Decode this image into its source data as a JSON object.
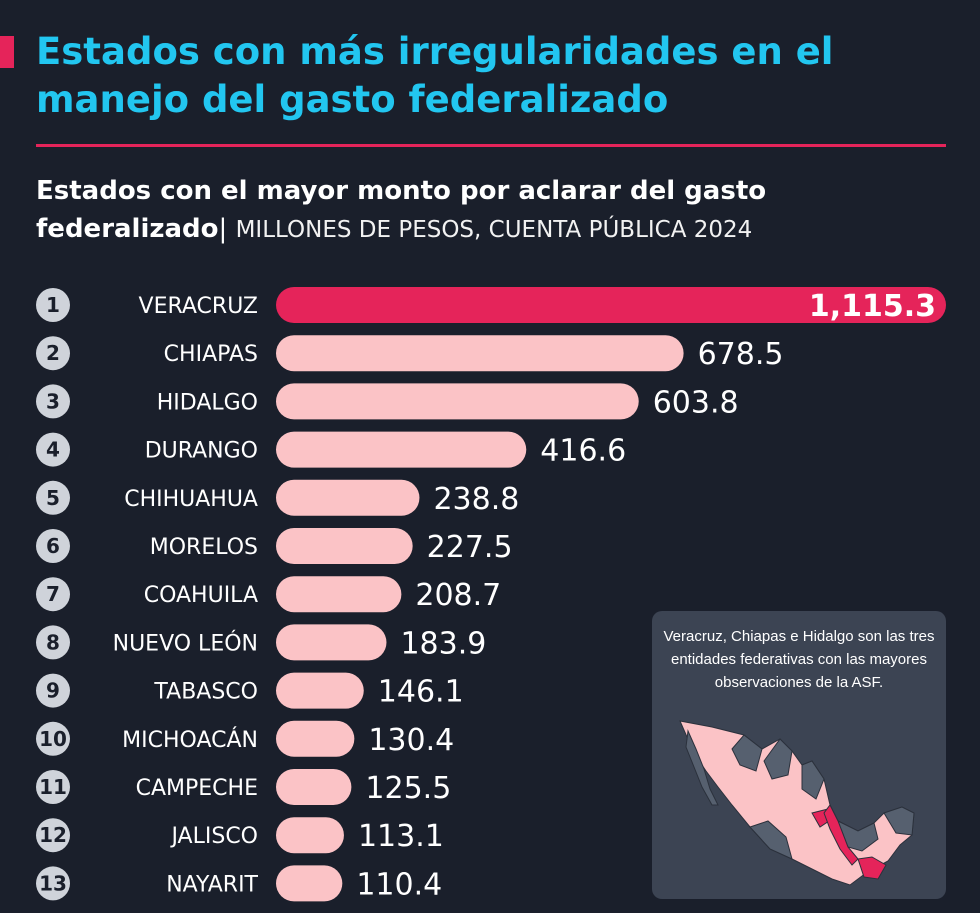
{
  "header": {
    "title": "Estados con más irregularidades en el manejo del gasto federalizado",
    "subtitle_bold": "Estados con el mayor monto por aclarar del gasto federalizado",
    "subtitle_separator": "|",
    "subtitle_unit": "MILLONES DE PESOS, CUENTA PÚBLICA 2024"
  },
  "inset": {
    "note": "Veracruz, Chiapas e Hidalgo son las tres entidades federativas con las mayores observaciones de la ASF."
  },
  "colors": {
    "background": "#1a1f2b",
    "title": "#22c6f0",
    "accent": "#e5245a",
    "bar": "#fbc3c6",
    "inset_bg": "#3c4453"
  },
  "chart_data": {
    "type": "bar",
    "orientation": "horizontal",
    "title": "Estados con el mayor monto por aclarar del gasto federalizado",
    "unit": "MILLONES DE PESOS, CUENTA PÚBLICA 2024",
    "ranks": [
      "1",
      "2",
      "3",
      "4",
      "5",
      "6",
      "7",
      "8",
      "9",
      "10",
      "11",
      "12",
      "13"
    ],
    "categories": [
      "VERACRUZ",
      "CHIAPAS",
      "HIDALGO",
      "DURANGO",
      "CHIHUAHUA",
      "MORELOS",
      "COAHUILA",
      "NUEVO LEÓN",
      "TABASCO",
      "MICHOACÁN",
      "CAMPECHE",
      "JALISCO",
      "NAYARIT"
    ],
    "values": [
      1115.3,
      678.5,
      603.8,
      416.6,
      238.8,
      227.5,
      208.7,
      183.9,
      146.1,
      130.4,
      125.5,
      113.1,
      110.4
    ],
    "value_labels": [
      "1,115.3",
      "678.5",
      "603.8",
      "416.6",
      "238.8",
      "227.5",
      "208.7",
      "183.9",
      "146.1",
      "130.4",
      "125.5",
      "113.1",
      "110.4"
    ],
    "xlim": [
      0,
      1115.3
    ],
    "highlight_index": 0
  }
}
